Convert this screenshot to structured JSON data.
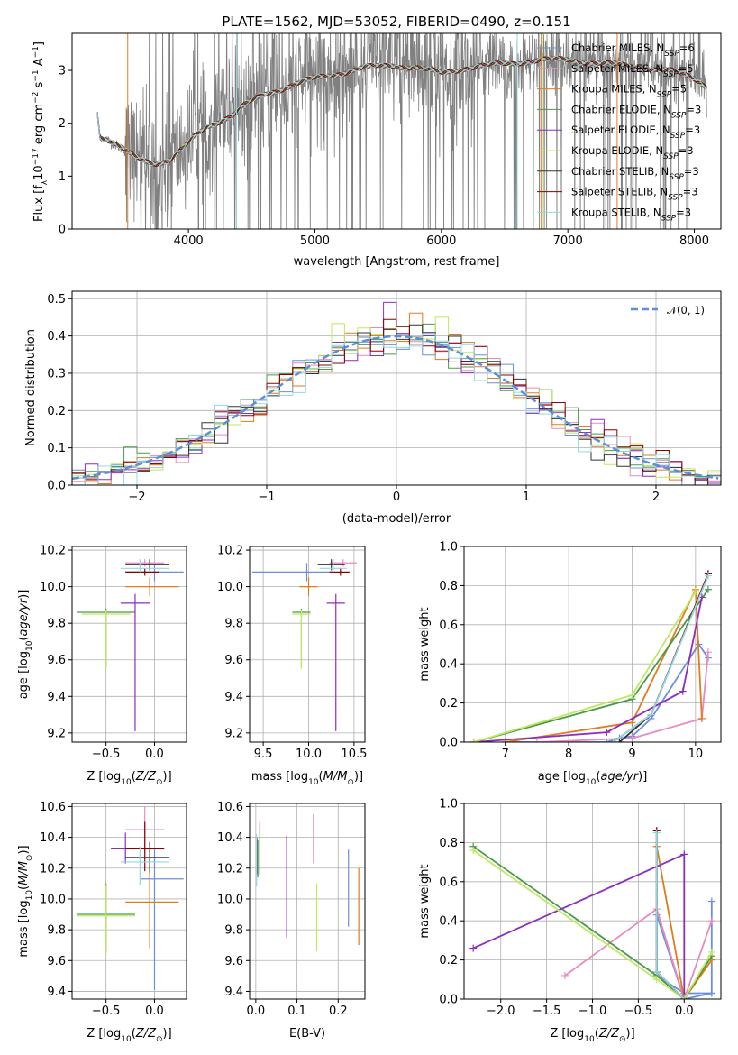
{
  "colors": {
    "chabrier_miles": "#6b8fdc",
    "salpeter_miles": "#e88ac0",
    "kroupa_miles": "#e07b1e",
    "chabrier_elodie": "#4a9a4a",
    "salpeter_elodie": "#8b2fc0",
    "kroupa_elodie": "#c0e860",
    "chabrier_stelib": "#333333",
    "salpeter_stelib": "#8b0000",
    "kroupa_stelib": "#90d8e0",
    "data": "#808080",
    "normal": "#5b8fd8"
  },
  "chart_data": [
    {
      "id": "spectrum",
      "type": "line",
      "title": "PLATE=1562, MJD=53052, FIBERID=0490, z=0.151",
      "xlabel": "wavelength [Angstrom, rest frame]",
      "ylabel": "Flux [f",
      "xlim": [
        3080,
        8210
      ],
      "ylim": [
        0,
        3.7
      ],
      "xticks": [
        "4000",
        "5000",
        "6000",
        "7000",
        "8000"
      ],
      "yticks": [
        "0",
        "1",
        "2",
        "3"
      ],
      "legend_position": "top-right",
      "legend": [
        "Chabrier MILES, N",
        "Salpeter MILES, N",
        "Kroupa MILES, N",
        "Chabrier ELODIE, N",
        "Salpeter ELODIE, N",
        "Kroupa ELODIE, N",
        "Chabrier STELIB, N",
        "Salpeter STELIB, N",
        "Kroupa STELIB, N"
      ],
      "legend_nssp": [
        "6",
        "5",
        "5",
        "3",
        "3",
        "3",
        "3",
        "3",
        "3"
      ],
      "continuum": {
        "x": [
          3280,
          3300,
          3350,
          3450,
          3550,
          3650,
          3750,
          3850,
          3950,
          4050,
          4150,
          4250,
          4350,
          4450,
          4600,
          4800,
          5000,
          5200,
          5400,
          5600,
          5800,
          6000,
          6200,
          6400,
          6600,
          6800,
          7000,
          7200,
          7400,
          7600,
          7800,
          8000,
          8100
        ],
        "y": [
          2.2,
          1.75,
          1.7,
          1.55,
          1.4,
          1.3,
          1.25,
          1.3,
          1.5,
          1.75,
          1.95,
          2.05,
          2.15,
          2.35,
          2.55,
          2.7,
          2.85,
          2.95,
          3.05,
          3.1,
          3.05,
          2.95,
          3.05,
          3.1,
          3.15,
          3.2,
          3.2,
          3.15,
          3.1,
          3.05,
          3.0,
          2.85,
          2.7
        ]
      },
      "noise_band": [
        3500,
        8050
      ]
    },
    {
      "id": "residuals",
      "type": "histogram",
      "xlabel": "(data-model)/error",
      "ylabel": "Normed distribution",
      "xlim": [
        -2.5,
        2.5
      ],
      "ylim": [
        0,
        0.52
      ],
      "xticks": [
        "−2",
        "−1",
        "0",
        "1",
        "2"
      ],
      "yticks": [
        "0.0",
        "0.1",
        "0.2",
        "0.3",
        "0.4",
        "0.5"
      ],
      "legend": [
        "𝒩(0, 1)"
      ],
      "bin_width": 0.1,
      "curve": "normal(0,1)"
    },
    {
      "id": "age-vs-Z",
      "type": "errorbar",
      "xlabel": "Z [log",
      "ylabel": "age  [log",
      "xlim": [
        -0.85,
        0.33
      ],
      "ylim": [
        9.15,
        10.22
      ],
      "xticks": [
        "−0.5",
        "0.0"
      ],
      "yticks": [
        "9.2",
        "9.4",
        "9.6",
        "9.8",
        "10.0",
        "10.2"
      ],
      "points": [
        {
          "model": "chabrier_miles",
          "x": 0.0,
          "xerr": [
            0.3,
            0.3
          ],
          "y": 10.08,
          "yerr": [
            0.05,
            0.05
          ]
        },
        {
          "model": "salpeter_miles",
          "x": -0.1,
          "xerr": [
            0.2,
            0.2
          ],
          "y": 10.13,
          "yerr": [
            0.02,
            0.02
          ]
        },
        {
          "model": "kroupa_miles",
          "x": -0.05,
          "xerr": [
            0.25,
            0.3
          ],
          "y": 10.0,
          "yerr": [
            0.05,
            0.05
          ]
        },
        {
          "model": "chabrier_elodie",
          "x": -0.5,
          "xerr": [
            0.3,
            0.3
          ],
          "y": 9.86,
          "yerr": [
            0.3,
            0.02
          ]
        },
        {
          "model": "salpeter_elodie",
          "x": -0.2,
          "xerr": [
            0.15,
            0.15
          ],
          "y": 9.91,
          "yerr": [
            0.7,
            0.05
          ]
        },
        {
          "model": "kroupa_elodie",
          "x": -0.5,
          "xerr": [
            0.25,
            0.25
          ],
          "y": 9.85,
          "yerr": [
            0.3,
            0.02
          ]
        },
        {
          "model": "chabrier_stelib",
          "x": -0.05,
          "xerr": [
            0.25,
            0.2
          ],
          "y": 10.12,
          "yerr": [
            0.03,
            0.03
          ]
        },
        {
          "model": "salpeter_stelib",
          "x": -0.1,
          "xerr": [
            0.2,
            0.15
          ],
          "y": 10.08,
          "yerr": [
            0.02,
            0.02
          ]
        },
        {
          "model": "kroupa_stelib",
          "x": -0.15,
          "xerr": [
            0.2,
            0.3
          ],
          "y": 10.1,
          "yerr": [
            0.02,
            0.05
          ]
        }
      ]
    },
    {
      "id": "age-vs-mass",
      "type": "errorbar",
      "xlabel": "mass [log",
      "xlim": [
        9.35,
        10.62
      ],
      "ylim": [
        9.15,
        10.22
      ],
      "xticks": [
        "9.5",
        "10.0",
        "10.5"
      ],
      "yticks": [
        "9.2",
        "9.4",
        "9.6",
        "9.8",
        "10.0",
        "10.2"
      ],
      "points": [
        {
          "model": "chabrier_miles",
          "x": 9.98,
          "xerr": [
            0.6,
            0.3
          ],
          "y": 10.08,
          "yerr": [
            0.05,
            0.05
          ]
        },
        {
          "model": "salpeter_miles",
          "x": 10.38,
          "xerr": [
            0.15,
            0.15
          ],
          "y": 10.13,
          "yerr": [
            0.02,
            0.02
          ]
        },
        {
          "model": "kroupa_miles",
          "x": 10.0,
          "xerr": [
            0.1,
            0.1
          ],
          "y": 10.0,
          "yerr": [
            0.05,
            0.05
          ]
        },
        {
          "model": "chabrier_elodie",
          "x": 9.92,
          "xerr": [
            0.1,
            0.1
          ],
          "y": 9.86,
          "yerr": [
            0.3,
            0.02
          ]
        },
        {
          "model": "salpeter_elodie",
          "x": 10.3,
          "xerr": [
            0.1,
            0.1
          ],
          "y": 9.91,
          "yerr": [
            0.7,
            0.05
          ]
        },
        {
          "model": "kroupa_elodie",
          "x": 9.92,
          "xerr": [
            0.1,
            0.1
          ],
          "y": 9.85,
          "yerr": [
            0.3,
            0.02
          ]
        },
        {
          "model": "chabrier_stelib",
          "x": 10.25,
          "xerr": [
            0.15,
            0.15
          ],
          "y": 10.12,
          "yerr": [
            0.03,
            0.03
          ]
        },
        {
          "model": "salpeter_stelib",
          "x": 10.35,
          "xerr": [
            0.12,
            0.1
          ],
          "y": 10.08,
          "yerr": [
            0.02,
            0.02
          ]
        },
        {
          "model": "kroupa_stelib",
          "x": 10.27,
          "xerr": [
            0.15,
            0.15
          ],
          "y": 10.1,
          "yerr": [
            0.02,
            0.05
          ]
        }
      ]
    },
    {
      "id": "weight-vs-age",
      "type": "line",
      "xlabel": "age  [log",
      "ylabel": "mass weight",
      "xlim": [
        6.35,
        10.4
      ],
      "ylim": [
        0,
        1
      ],
      "xticks": [
        "7",
        "8",
        "9",
        "10"
      ],
      "yticks": [
        "0.0",
        "0.2",
        "0.4",
        "0.6",
        "0.8",
        "1.0"
      ],
      "series": [
        {
          "model": "chabrier_miles",
          "x": [
            7.0,
            8.6,
            8.8,
            9.0,
            9.3,
            10.05,
            10.2
          ],
          "y": [
            0.0,
            0.0,
            0.02,
            0.03,
            0.12,
            0.5,
            0.43
          ]
        },
        {
          "model": "salpeter_miles",
          "x": [
            7.5,
            9.0,
            10.1,
            10.2
          ],
          "y": [
            0.0,
            0.02,
            0.12,
            0.46
          ]
        },
        {
          "model": "kroupa_miles",
          "x": [
            7.0,
            9.0,
            10.0,
            10.1
          ],
          "y": [
            0.0,
            0.1,
            0.78,
            0.12
          ]
        },
        {
          "model": "chabrier_elodie",
          "x": [
            6.5,
            9.0,
            10.2
          ],
          "y": [
            0.0,
            0.22,
            0.78
          ]
        },
        {
          "model": "salpeter_elodie",
          "x": [
            6.5,
            8.6,
            9.8,
            10.1
          ],
          "y": [
            0.0,
            0.05,
            0.26,
            0.74
          ]
        },
        {
          "model": "kroupa_elodie",
          "x": [
            6.5,
            9.0,
            10.0
          ],
          "y": [
            0.0,
            0.24,
            0.77
          ]
        },
        {
          "model": "chabrier_stelib",
          "x": [
            8.8,
            9.3,
            10.2
          ],
          "y": [
            0.0,
            0.14,
            0.86
          ]
        },
        {
          "model": "salpeter_stelib",
          "x": [
            8.7,
            9.3,
            10.2
          ],
          "y": [
            0.0,
            0.14,
            0.86
          ]
        },
        {
          "model": "kroupa_stelib",
          "x": [
            8.7,
            9.3,
            10.2
          ],
          "y": [
            0.0,
            0.14,
            0.85
          ]
        }
      ]
    },
    {
      "id": "mass-vs-Z",
      "type": "errorbar",
      "xlabel": "Z [log",
      "ylabel": "mass [log",
      "xlim": [
        -0.85,
        0.33
      ],
      "ylim": [
        9.35,
        10.62
      ],
      "xticks": [
        "−0.5",
        "0.0"
      ],
      "yticks": [
        "9.4",
        "9.6",
        "9.8",
        "10.0",
        "10.2",
        "10.4",
        "10.6"
      ],
      "points": [
        {
          "model": "chabrier_miles",
          "x": 0.0,
          "xerr": [
            0.15,
            0.3
          ],
          "y": 10.13,
          "yerr": [
            0.72,
            0.2
          ]
        },
        {
          "model": "salpeter_miles",
          "x": -0.1,
          "xerr": [
            0.2,
            0.2
          ],
          "y": 10.45,
          "yerr": [
            0.15,
            0.15
          ]
        },
        {
          "model": "kroupa_miles",
          "x": -0.05,
          "xerr": [
            0.25,
            0.3
          ],
          "y": 9.98,
          "yerr": [
            0.3,
            0.2
          ]
        },
        {
          "model": "chabrier_elodie",
          "x": -0.5,
          "xerr": [
            0.3,
            0.3
          ],
          "y": 9.9,
          "yerr": [
            0.25,
            0.2
          ]
        },
        {
          "model": "salpeter_elodie",
          "x": -0.3,
          "xerr": [
            0.15,
            0.25
          ],
          "y": 10.33,
          "yerr": [
            0.1,
            0.1
          ]
        },
        {
          "model": "kroupa_elodie",
          "x": -0.5,
          "xerr": [
            0.3,
            0.3
          ],
          "y": 9.89,
          "yerr": [
            0.25,
            0.2
          ]
        },
        {
          "model": "chabrier_stelib",
          "x": -0.05,
          "xerr": [
            0.25,
            0.2
          ],
          "y": 10.27,
          "yerr": [
            0.1,
            0.1
          ]
        },
        {
          "model": "salpeter_stelib",
          "x": -0.1,
          "xerr": [
            0.2,
            0.2
          ],
          "y": 10.33,
          "yerr": [
            0.15,
            0.17
          ]
        },
        {
          "model": "kroupa_stelib",
          "x": -0.15,
          "xerr": [
            0.2,
            0.3
          ],
          "y": 10.24,
          "yerr": [
            0.15,
            0.1
          ]
        }
      ]
    },
    {
      "id": "mass-vs-ebv",
      "type": "errorbar",
      "xlabel": "E(B-V)",
      "xlim": [
        -0.015,
        0.265
      ],
      "ylim": [
        9.35,
        10.62
      ],
      "xticks": [
        "0.0",
        "0.1",
        "0.2"
      ],
      "yticks": [
        "9.4",
        "9.6",
        "9.8",
        "10.0",
        "10.2",
        "10.4",
        "10.6"
      ],
      "points": [
        {
          "model": "chabrier_miles",
          "x": 0.225,
          "y": 9.82,
          "yerr": [
            0.0,
            0.5
          ]
        },
        {
          "model": "salpeter_miles",
          "x": 0.14,
          "y": 10.38,
          "yerr": [
            0.15,
            0.17
          ]
        },
        {
          "model": "kroupa_miles",
          "x": 0.25,
          "y": 9.95,
          "yerr": [
            0.25,
            0.25
          ]
        },
        {
          "model": "chabrier_elodie",
          "x": 0.005,
          "y": 10.26,
          "yerr": [
            0.12,
            0.12
          ]
        },
        {
          "model": "salpeter_elodie",
          "x": 0.075,
          "y": 10.08,
          "yerr": [
            0.33,
            0.33
          ]
        },
        {
          "model": "kroupa_elodie",
          "x": 0.148,
          "y": 9.88,
          "yerr": [
            0.22,
            0.22
          ]
        },
        {
          "model": "chabrier_stelib",
          "x": 0.003,
          "y": 10.28,
          "yerr": [
            0.12,
            0.12
          ]
        },
        {
          "model": "salpeter_stelib",
          "x": 0.01,
          "y": 10.33,
          "yerr": [
            0.17,
            0.17
          ]
        },
        {
          "model": "kroupa_stelib",
          "x": 0.002,
          "y": 10.25,
          "yerr": [
            0.17,
            0.17
          ]
        }
      ]
    },
    {
      "id": "weight-vs-Z",
      "type": "line",
      "xlabel": "Z [log",
      "ylabel": "mass weight",
      "xlim": [
        -2.4,
        0.4
      ],
      "ylim": [
        0,
        1
      ],
      "xticks": [
        "−2.0",
        "−1.5",
        "−1.0",
        "−0.5",
        "0.0"
      ],
      "yticks": [
        "0.0",
        "0.2",
        "0.4",
        "0.6",
        "0.8",
        "1.0"
      ],
      "series": [
        {
          "model": "chabrier_miles",
          "x": [
            0.3,
            0.3,
            0.0,
            -0.3,
            -0.3,
            0.0,
            0.3
          ],
          "y": [
            0.5,
            0.03,
            0.0,
            0.43,
            0.12,
            0.03,
            0.03
          ]
        },
        {
          "model": "salpeter_miles",
          "x": [
            -1.3,
            -0.3,
            0.0,
            0.3
          ],
          "y": [
            0.12,
            0.46,
            0.0,
            0.4
          ]
        },
        {
          "model": "kroupa_miles",
          "x": [
            -0.3,
            0.0,
            0.3
          ],
          "y": [
            0.78,
            0.0,
            0.2
          ]
        },
        {
          "model": "chabrier_elodie",
          "x": [
            -2.3,
            -0.3,
            0.0,
            0.3
          ],
          "y": [
            0.78,
            0.12,
            0.0,
            0.22
          ]
        },
        {
          "model": "salpeter_elodie",
          "x": [
            -2.3,
            0.0,
            0.0
          ],
          "y": [
            0.26,
            0.74,
            0.0
          ]
        },
        {
          "model": "kroupa_elodie",
          "x": [
            -2.3,
            -0.3,
            0.0,
            0.3
          ],
          "y": [
            0.76,
            0.1,
            0.0,
            0.24
          ]
        },
        {
          "model": "chabrier_stelib",
          "x": [
            -0.3,
            -0.3,
            0.0
          ],
          "y": [
            0.86,
            0.14,
            0.0
          ]
        },
        {
          "model": "salpeter_stelib",
          "x": [
            -0.3,
            -0.3,
            0.0
          ],
          "y": [
            0.86,
            0.14,
            0.0
          ]
        },
        {
          "model": "kroupa_stelib",
          "x": [
            -0.3,
            -0.3,
            0.0
          ],
          "y": [
            0.85,
            0.14,
            0.0
          ]
        }
      ]
    }
  ]
}
